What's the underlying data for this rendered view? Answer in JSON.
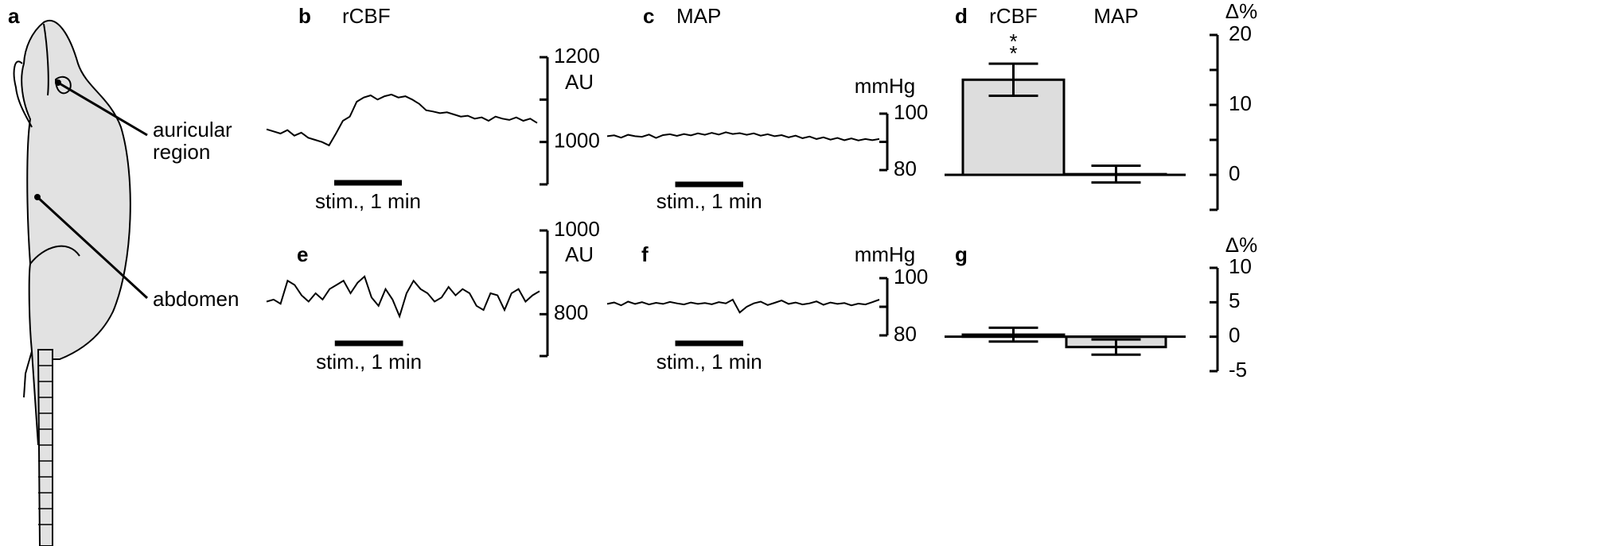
{
  "panel_a": {
    "label": "a",
    "sites": [
      {
        "label": [
          "auricular",
          "region"
        ]
      },
      {
        "label": [
          "abdomen"
        ]
      }
    ]
  },
  "traces": [
    {
      "label": "b",
      "title": "rCBF",
      "unit": "AU",
      "ylim": [
        900,
        1200
      ],
      "yticks": [
        1000,
        1200
      ],
      "yminorticks": [
        900,
        1100
      ],
      "duration_min": 4,
      "stim_min": [
        1,
        2
      ],
      "stim_label": "stim., 1 min",
      "values": [
        1030,
        1025,
        1020,
        1028,
        1015,
        1022,
        1010,
        1005,
        1000,
        992,
        1020,
        1050,
        1060,
        1095,
        1105,
        1110,
        1100,
        1108,
        1112,
        1105,
        1108,
        1100,
        1090,
        1075,
        1072,
        1068,
        1070,
        1065,
        1060,
        1062,
        1055,
        1058,
        1050,
        1060,
        1055,
        1052,
        1058,
        1050,
        1055,
        1045
      ]
    },
    {
      "label": "c",
      "title": "MAP",
      "unit": "mmHg",
      "ylim": [
        80,
        100
      ],
      "yticks": [
        80,
        100
      ],
      "yminorticks": [
        90
      ],
      "duration_min": 4,
      "stim_min": [
        1,
        2
      ],
      "stim_label": "stim., 1 min",
      "values": [
        92,
        92.3,
        91.5,
        92.5,
        92,
        91.8,
        92.6,
        91.4,
        92.4,
        92.7,
        92.1,
        92.8,
        92.3,
        93,
        92.5,
        93.2,
        92.6,
        93.4,
        92.8,
        93.1,
        92.5,
        93,
        92.2,
        92.7,
        92,
        92.4,
        91.6,
        92.2,
        91.3,
        91.9,
        91,
        91.6,
        90.8,
        91.4,
        90.6,
        91.2,
        90.5,
        91,
        90.6,
        91
      ]
    },
    {
      "label": "e",
      "unit": "AU",
      "ylim": [
        700,
        1000
      ],
      "yticks": [
        800,
        1000
      ],
      "yminorticks": [
        700,
        900
      ],
      "duration_min": 4,
      "stim_min": [
        1,
        2
      ],
      "stim_label": "stim., 1 min",
      "values": [
        830,
        835,
        825,
        880,
        870,
        845,
        830,
        850,
        835,
        860,
        870,
        880,
        850,
        875,
        890,
        840,
        820,
        860,
        835,
        795,
        850,
        880,
        860,
        850,
        830,
        840,
        865,
        845,
        860,
        850,
        820,
        810,
        850,
        845,
        810,
        850,
        860,
        830,
        845,
        855
      ]
    },
    {
      "label": "f",
      "unit": "mmHg",
      "ylim": [
        80,
        100
      ],
      "yticks": [
        80,
        100
      ],
      "yminorticks": [
        90
      ],
      "duration_min": 4,
      "stim_min": [
        1,
        2
      ],
      "stim_label": "stim., 1 min",
      "values": [
        91,
        91.5,
        90.5,
        91.8,
        91,
        91.6,
        90.8,
        91.4,
        91,
        91.7,
        91.2,
        90.8,
        91.5,
        91,
        91.3,
        90.9,
        91.6,
        91.2,
        92.5,
        88,
        90,
        91.2,
        91.8,
        90.6,
        91.4,
        92.2,
        91,
        91.5,
        90.8,
        91.2,
        91.9,
        90.7,
        91.5,
        91,
        91.3,
        90.5,
        91.1,
        90.8,
        91.6,
        92.5
      ]
    }
  ],
  "bars": [
    {
      "label": "d",
      "categories": [
        "rCBF",
        "MAP"
      ],
      "unit": "Δ%",
      "ylim": [
        -5,
        20
      ],
      "yticks": [
        0,
        10,
        20
      ],
      "yminorticks": [
        -5,
        5,
        15
      ],
      "values": [
        13.6,
        0.1
      ],
      "errors": [
        2.3,
        1.2
      ],
      "significance": [
        "*",
        "*"
      ]
    },
    {
      "label": "g",
      "unit": "Δ%",
      "ylim": [
        -5,
        10
      ],
      "yticks": [
        -5,
        0,
        5,
        10
      ],
      "values": [
        0.3,
        -1.5
      ],
      "errors": [
        1.0,
        1.1
      ]
    }
  ]
}
